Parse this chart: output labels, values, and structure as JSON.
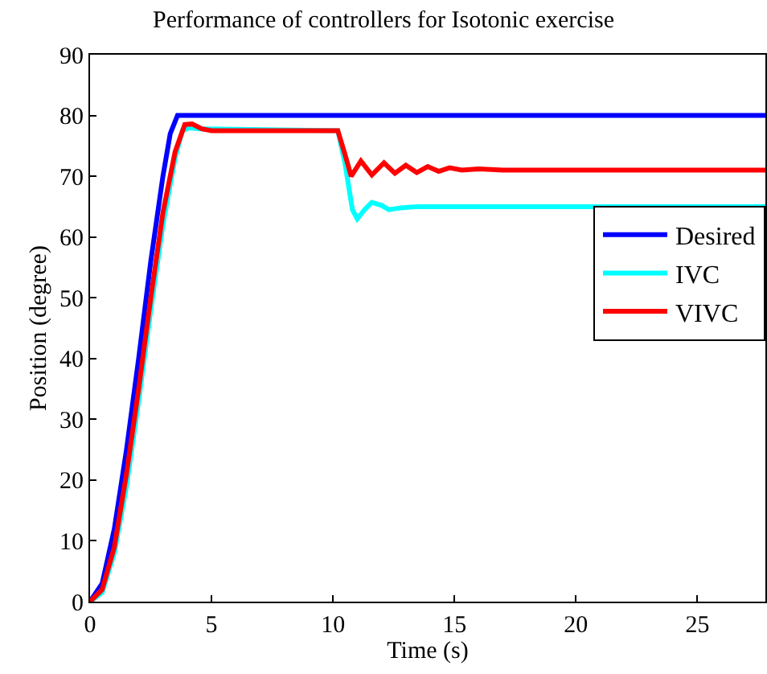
{
  "chart_data": {
    "type": "line",
    "title": "Performance of controllers for Isotonic exercise",
    "xlabel": "Time (s)",
    "ylabel": "Position (degree)",
    "xlim": [
      0,
      27.8
    ],
    "xticks": [
      0,
      5,
      10,
      15,
      20,
      25
    ],
    "ylim": [
      0,
      90
    ],
    "yticks": [
      0,
      10,
      20,
      30,
      40,
      50,
      60,
      70,
      80,
      90
    ],
    "grid": false,
    "legend": "right",
    "marker": "none",
    "line_style": "solid",
    "series": [
      {
        "name": "Desired",
        "color": "#0000ff",
        "x": [
          0,
          0.5,
          1,
          1.5,
          2,
          2.5,
          3,
          3.3,
          3.6,
          27.8
        ],
        "values": [
          0,
          3,
          12,
          25,
          40,
          56,
          70,
          77,
          80,
          80
        ]
      },
      {
        "name": "IVC",
        "color": "#00ffff",
        "x": [
          0,
          0.5,
          1,
          1.5,
          2,
          2.5,
          3,
          3.5,
          3.8,
          4.1,
          4.5,
          10.2,
          10.5,
          10.8,
          11,
          11.3,
          11.6,
          12,
          12.3,
          12.8,
          13.5,
          27.8
        ],
        "values": [
          0,
          1.5,
          8,
          19,
          33,
          48,
          62,
          73,
          77.5,
          78,
          77.8,
          77.5,
          72,
          64.5,
          63,
          64.5,
          65.7,
          65.2,
          64.5,
          64.8,
          65,
          65
        ]
      },
      {
        "name": "VIVC",
        "color": "#ff0000",
        "x": [
          0,
          0.5,
          1,
          1.5,
          2,
          2.5,
          3,
          3.5,
          3.9,
          4.2,
          4.6,
          5,
          10.2,
          10.5,
          10.75,
          11.15,
          11.6,
          12.1,
          12.55,
          13,
          13.45,
          13.9,
          14.35,
          14.8,
          15.3,
          16,
          17,
          27.8
        ],
        "values": [
          0,
          2,
          9,
          21,
          35,
          50,
          64,
          74,
          78.5,
          78.6,
          77.8,
          77.5,
          77.5,
          73.5,
          70,
          72.5,
          70.2,
          72.2,
          70.5,
          71.8,
          70.6,
          71.6,
          70.8,
          71.4,
          71,
          71.2,
          71,
          71
        ]
      }
    ]
  }
}
